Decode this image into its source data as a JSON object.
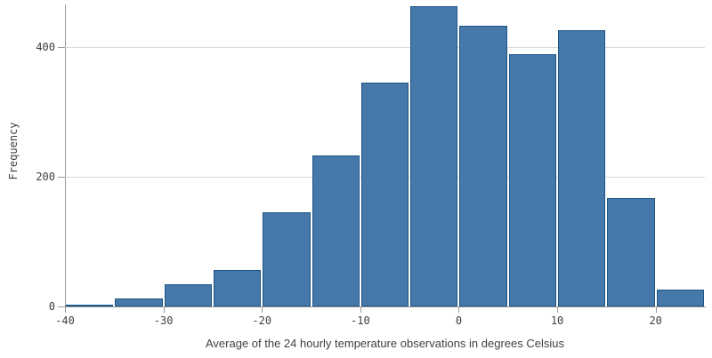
{
  "chart_data": {
    "type": "bar",
    "subtype": "histogram",
    "title": "",
    "xlabel": "Average of the 24 hourly temperature observations in degrees Celsius",
    "ylabel": "Frequency",
    "bin_width": 5,
    "bins": [
      {
        "x0": -40,
        "x1": -35,
        "count": 3
      },
      {
        "x0": -35,
        "x1": -30,
        "count": 13
      },
      {
        "x0": -30,
        "x1": -25,
        "count": 34
      },
      {
        "x0": -25,
        "x1": -20,
        "count": 56
      },
      {
        "x0": -20,
        "x1": -15,
        "count": 145
      },
      {
        "x0": -15,
        "x1": -10,
        "count": 233
      },
      {
        "x0": -10,
        "x1": -5,
        "count": 345
      },
      {
        "x0": -5,
        "x1": 0,
        "count": 462
      },
      {
        "x0": 0,
        "x1": 5,
        "count": 432
      },
      {
        "x0": 5,
        "x1": 10,
        "count": 388
      },
      {
        "x0": 10,
        "x1": 15,
        "count": 425
      },
      {
        "x0": 15,
        "x1": 20,
        "count": 167
      },
      {
        "x0": 20,
        "x1": 25,
        "count": 26
      }
    ],
    "xlim": [
      -40,
      25
    ],
    "ylim": [
      0,
      465
    ],
    "x_ticks": [
      -40,
      -30,
      -20,
      -10,
      0,
      10,
      20
    ],
    "y_ticks": [
      0,
      200,
      400
    ],
    "grid": "horizontal-only",
    "legend": "none",
    "colors": {
      "bar_fill": "#4678a9",
      "bar_border": "#1c5585",
      "axis": "#999999",
      "gridline": "#d8d8d8",
      "label_text": "#3e3e3e"
    }
  }
}
